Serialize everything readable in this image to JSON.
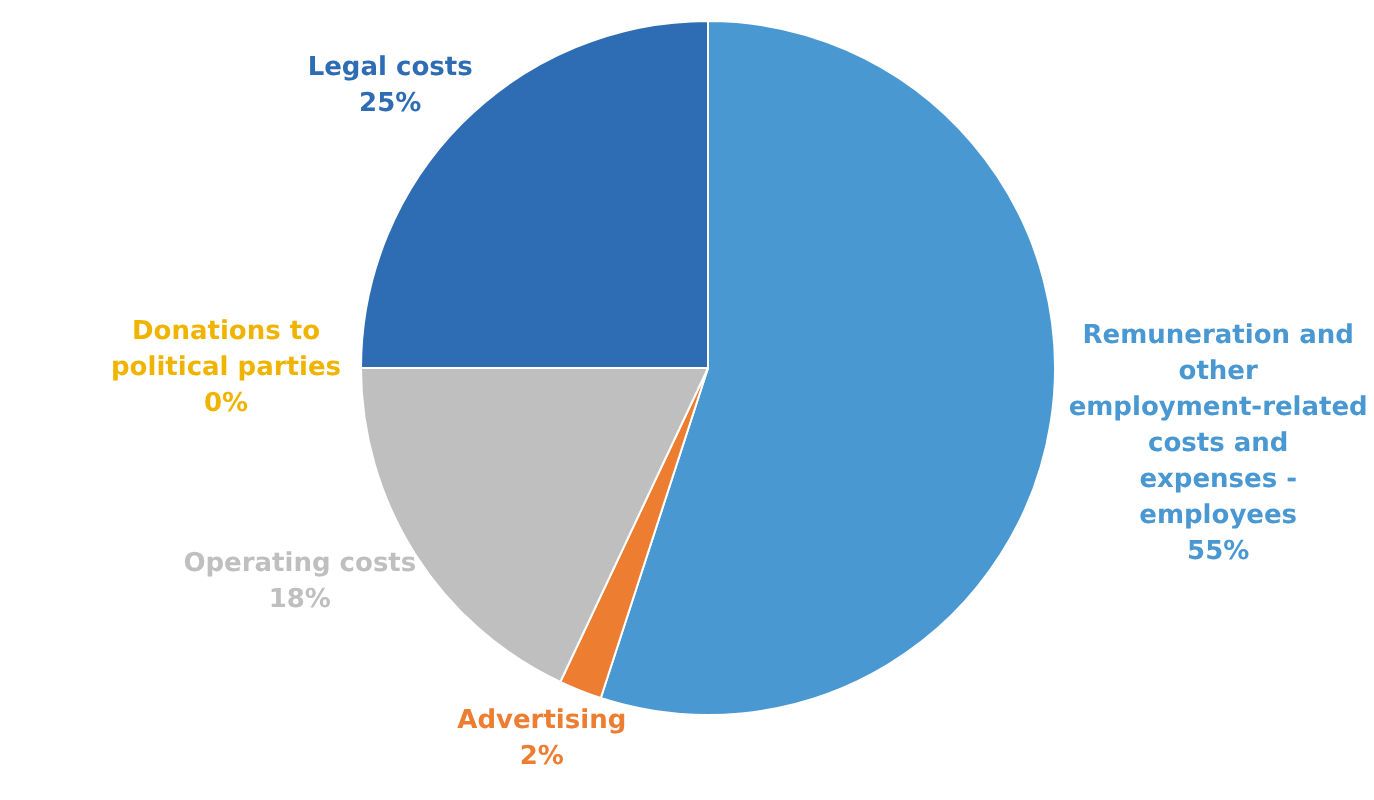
{
  "chart_data": {
    "type": "pie",
    "categories": [
      "Remuneration and other employment-related costs and expenses - employees",
      "Advertising",
      "Operating costs",
      "Donations to political parties",
      "Legal costs"
    ],
    "values": [
      55,
      2,
      18,
      0,
      25
    ],
    "colors": [
      "#4a98d2",
      "#ed7d31",
      "#bfbfbf",
      "#f0b400",
      "#2e6db3"
    ],
    "value_labels": [
      "55%",
      "2%",
      "18%",
      "0%",
      "25%"
    ],
    "legend": false
  }
}
